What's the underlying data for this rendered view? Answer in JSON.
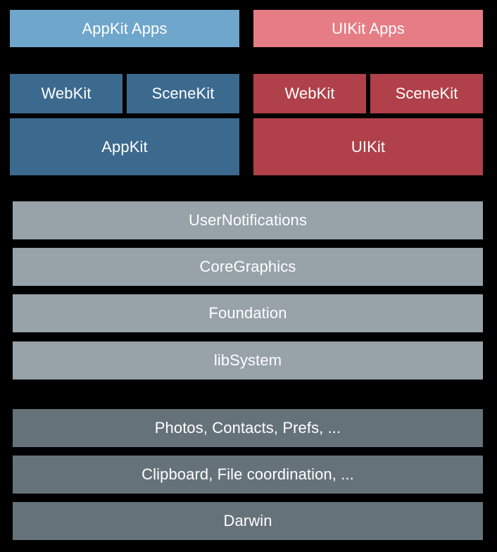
{
  "apps": {
    "appkit": "AppKit Apps",
    "uikit": "UIKit Apps"
  },
  "mac_frameworks": {
    "webkit": "WebKit",
    "scenekit": "SceneKit",
    "appkit": "AppKit"
  },
  "ios_frameworks": {
    "webkit": "WebKit",
    "scenekit": "SceneKit",
    "uikit": "UIKit"
  },
  "shared_layers": [
    "UserNotifications",
    "CoreGraphics",
    "Foundation",
    "libSystem"
  ],
  "system_layers": [
    "Photos, Contacts, Prefs, ...",
    "Clipboard, File coordination, ...",
    "Darwin"
  ],
  "colors": {
    "background": "#000000",
    "appkit_apps": "#6fa6cb",
    "uikit_apps": "#e67c84",
    "appkit_stack": "#3c6a8f",
    "uikit_stack": "#b04049",
    "shared_layer": "#97a2a9",
    "system_layer": "#66727a",
    "text": "#ffffff"
  }
}
